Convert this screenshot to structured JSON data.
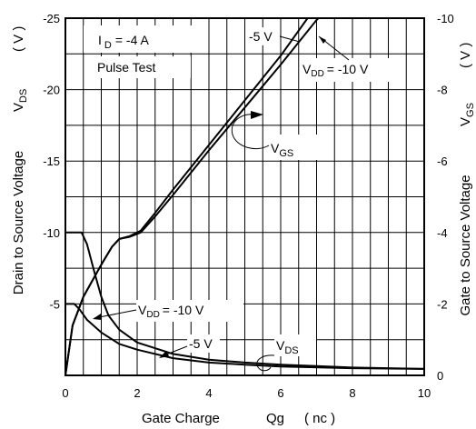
{
  "chart_data": {
    "type": "line",
    "x_axis": {
      "label_main": "Gate Charge",
      "label_symbol": "Qg",
      "label_unit": "( nc )",
      "range": [
        0,
        10
      ],
      "ticks": [
        "0",
        "2",
        "4",
        "6",
        "8",
        "10"
      ]
    },
    "y_left": {
      "label": "Drain to Source Voltage",
      "symbol_main": "V",
      "symbol_sub": "DS",
      "unit": "( V )",
      "range": [
        -25,
        0
      ],
      "ticks": [
        "-25",
        "-20",
        "-15",
        "-10",
        "-5"
      ]
    },
    "y_right": {
      "label": "Gate to Source Voltage",
      "symbol_main": "V",
      "symbol_sub": "GS",
      "unit": "( V )",
      "range": [
        -10,
        0
      ],
      "ticks": [
        "-10",
        "-8",
        "-6",
        "-4",
        "-2",
        "0"
      ]
    },
    "grid": true,
    "annotations": {
      "id_main": "I",
      "id_sub": "D",
      "id_value": "= -4 A",
      "pulse": "Pulse Test",
      "vdd_a_main": "V",
      "vdd_a_sub": "DD",
      "vdd_a_value": "= -10 V",
      "minus5_a": "-5 V",
      "vgs_main": "V",
      "vgs_sub": "GS",
      "vdd_b_main": "V",
      "vdd_b_sub": "DD",
      "vdd_b_value": "= -10 V",
      "minus5_b": "-5 V",
      "vds_main": "V",
      "vds_sub": "DS"
    },
    "series": [
      {
        "axis": "right",
        "points": [
          [
            0,
            0
          ],
          [
            0.2,
            -1.4
          ],
          [
            0.5,
            -2.2
          ],
          [
            1.0,
            -3.1
          ],
          [
            1.3,
            -3.6
          ],
          [
            1.5,
            -3.82
          ],
          [
            1.8,
            -3.9
          ],
          [
            2.1,
            -4.05
          ],
          [
            2.5,
            -4.55
          ],
          [
            3.0,
            -5.2
          ],
          [
            4.0,
            -6.45
          ],
          [
            5.0,
            -7.7
          ],
          [
            6.0,
            -8.95
          ],
          [
            6.75,
            -10
          ]
        ]
      },
      {
        "axis": "right",
        "points": [
          [
            0,
            0
          ],
          [
            0.2,
            -1.4
          ],
          [
            0.5,
            -2.2
          ],
          [
            1.0,
            -3.1
          ],
          [
            1.3,
            -3.6
          ],
          [
            1.5,
            -3.82
          ],
          [
            1.8,
            -3.88
          ],
          [
            2.1,
            -4.0
          ],
          [
            2.5,
            -4.45
          ],
          [
            3.0,
            -5.05
          ],
          [
            4.0,
            -6.3
          ],
          [
            5.0,
            -7.5
          ],
          [
            6.0,
            -8.7
          ],
          [
            7.0,
            -9.95
          ],
          [
            7.05,
            -10
          ]
        ]
      },
      {
        "axis": "left",
        "points": [
          [
            0,
            -10
          ],
          [
            0.45,
            -10
          ],
          [
            0.6,
            -9.2
          ],
          [
            0.8,
            -7.3
          ],
          [
            1.0,
            -5.5
          ],
          [
            1.2,
            -4.2
          ],
          [
            1.5,
            -3.2
          ],
          [
            2.0,
            -2.3
          ],
          [
            3.0,
            -1.5
          ],
          [
            4.0,
            -1.1
          ],
          [
            5.0,
            -0.9
          ],
          [
            6.0,
            -0.75
          ],
          [
            7.0,
            -0.65
          ],
          [
            8.0,
            -0.55
          ],
          [
            10.0,
            -0.45
          ]
        ]
      },
      {
        "axis": "left",
        "points": [
          [
            0,
            -5
          ],
          [
            0.25,
            -5
          ],
          [
            0.4,
            -4.6
          ],
          [
            0.6,
            -3.9
          ],
          [
            1.0,
            -3.0
          ],
          [
            1.5,
            -2.2
          ],
          [
            2.0,
            -1.8
          ],
          [
            3.0,
            -1.2
          ],
          [
            4.0,
            -0.9
          ],
          [
            5.0,
            -0.75
          ],
          [
            6.0,
            -0.62
          ],
          [
            8.0,
            -0.5
          ],
          [
            10.0,
            -0.45
          ]
        ]
      }
    ]
  }
}
